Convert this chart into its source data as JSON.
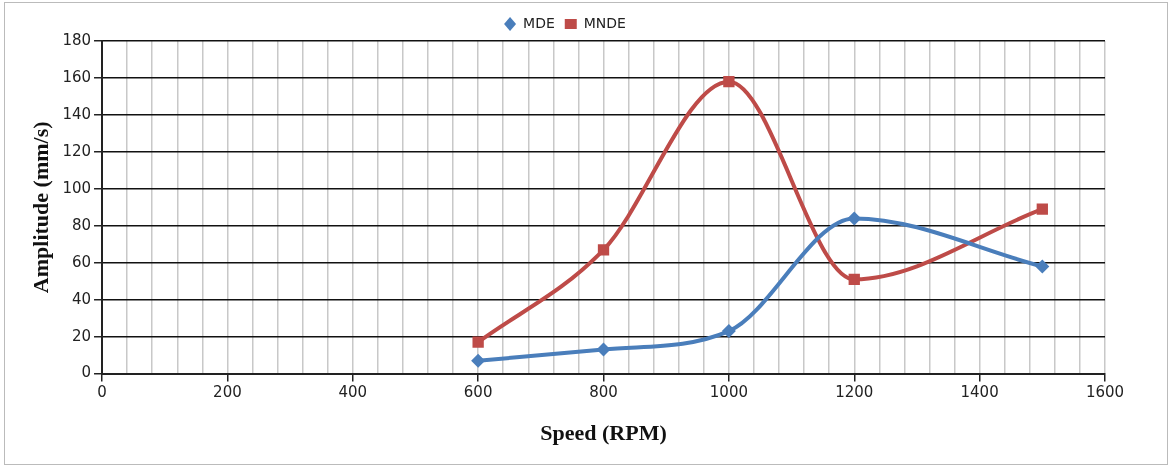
{
  "chart_data": {
    "type": "line",
    "xlabel": "Speed (RPM)",
    "ylabel": "Amplitude (mm/s)",
    "x": [
      600,
      800,
      1000,
      1200,
      1500
    ],
    "series": [
      {
        "name": "MDE",
        "color": "#4a7ebb",
        "marker": "diamond",
        "values": [
          7,
          13,
          23,
          84,
          58
        ]
      },
      {
        "name": "MNDE",
        "color": "#be4b48",
        "marker": "square",
        "values": [
          17,
          67,
          158,
          51,
          89
        ]
      }
    ],
    "xlim": [
      0,
      1600
    ],
    "xticks": [
      0,
      {
        "value": 40,
        "label": null
      },
      {
        "value": 80,
        "label": null
      },
      {
        "value": 120,
        "label": null
      },
      {
        "value": 160,
        "label": null
      },
      200,
      {
        "value": 240,
        "label": null
      },
      {
        "value": 280,
        "label": null
      },
      {
        "value": 320,
        "label": null
      },
      {
        "value": 360,
        "label": null
      },
      400,
      {
        "value": 440,
        "label": null
      },
      {
        "value": 480,
        "label": null
      },
      {
        "value": 520,
        "label": null
      },
      {
        "value": 560,
        "label": null
      },
      600,
      {
        "value": 640,
        "label": null
      },
      {
        "value": 680,
        "label": null
      },
      {
        "value": 720,
        "label": null
      },
      {
        "value": 760,
        "label": null
      },
      800,
      {
        "value": 840,
        "label": null
      },
      {
        "value": 880,
        "label": null
      },
      {
        "value": 920,
        "label": null
      },
      {
        "value": 960,
        "label": null
      },
      1000,
      {
        "value": 1040,
        "label": null
      },
      {
        "value": 1080,
        "label": null
      },
      {
        "value": 1120,
        "label": null
      },
      {
        "value": 1160,
        "label": null
      },
      1200,
      {
        "value": 1240,
        "label": null
      },
      {
        "value": 1280,
        "label": null
      },
      {
        "value": 1320,
        "label": null
      },
      {
        "value": 1360,
        "label": null
      },
      1400,
      {
        "value": 1440,
        "label": null
      },
      {
        "value": 1480,
        "label": null
      },
      {
        "value": 1520,
        "label": null
      },
      {
        "value": 1560,
        "label": null
      },
      1600
    ],
    "ylim": [
      0,
      180
    ],
    "yticks": [
      0,
      20,
      40,
      60,
      80,
      100,
      120,
      140,
      160,
      180
    ],
    "grid": true,
    "legend": "top",
    "line_style": "solid"
  }
}
